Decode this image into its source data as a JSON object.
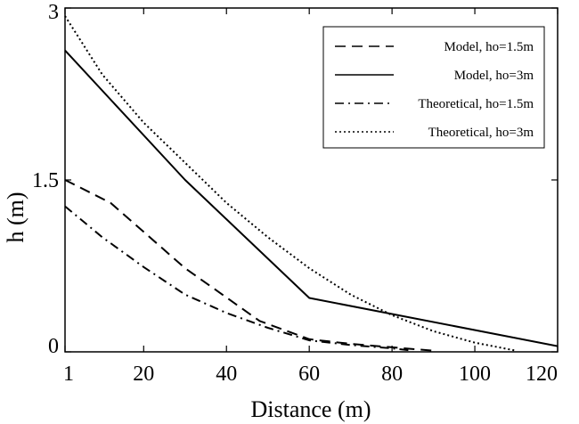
{
  "chart_data": {
    "type": "line",
    "title": "",
    "xlabel": "Distance (m)",
    "ylabel": "h (m)",
    "xlim": [
      1,
      120
    ],
    "ylim": [
      0,
      3
    ],
    "x_ticks": [
      1,
      20,
      40,
      60,
      80,
      100,
      120
    ],
    "y_ticks": [
      0,
      1.5,
      3
    ],
    "grid": false,
    "legend_position": "top-right",
    "series": [
      {
        "name": "Model, ho=1.5m",
        "dash": "dashed",
        "x": [
          1,
          12,
          30,
          48,
          60,
          70,
          80,
          90
        ],
        "y": [
          1.5,
          1.3,
          0.73,
          0.27,
          0.11,
          0.07,
          0.04,
          0.01
        ]
      },
      {
        "name": "Model, ho=3m",
        "dash": "solid",
        "x": [
          1,
          30,
          60,
          120
        ],
        "y": [
          2.63,
          1.5,
          0.47,
          0.05
        ]
      },
      {
        "name": "Theoretical, ho=1.5m",
        "dash": "dashdot",
        "x": [
          1,
          10,
          20,
          30,
          40,
          50,
          60,
          70,
          80,
          85
        ],
        "y": [
          1.27,
          1.0,
          0.74,
          0.5,
          0.34,
          0.21,
          0.1,
          0.06,
          0.03,
          0.01
        ]
      },
      {
        "name": "Theoretical, ho=3m",
        "dash": "dotted",
        "x": [
          1,
          10,
          20,
          30,
          40,
          50,
          60,
          70,
          80,
          90,
          100,
          110
        ],
        "y": [
          2.93,
          2.42,
          2.0,
          1.65,
          1.3,
          1.0,
          0.73,
          0.5,
          0.32,
          0.18,
          0.08,
          0.01
        ]
      }
    ]
  }
}
